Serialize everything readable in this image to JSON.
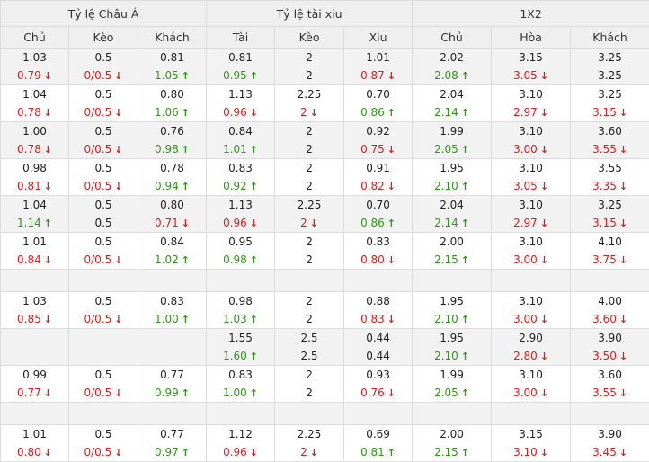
{
  "groups": [
    "Tỷ lệ Châu Á",
    "Tỷ lệ tài xiu",
    "1X2"
  ],
  "columns": [
    "Chủ",
    "Kèo",
    "Khách",
    "Tài",
    "Kèo",
    "Xiu",
    "Chủ",
    "Hòa",
    "Khách"
  ],
  "rows": [
    {
      "shade": true,
      "cells": [
        [
          [
            "1.03",
            ""
          ],
          [
            "0.79",
            "dn"
          ]
        ],
        [
          [
            "0.5",
            ""
          ],
          [
            "0/0.5",
            "dn"
          ]
        ],
        [
          [
            "0.81",
            ""
          ],
          [
            "1.05",
            "up"
          ]
        ],
        [
          [
            "0.81",
            ""
          ],
          [
            "0.95",
            "up"
          ]
        ],
        [
          [
            "2",
            ""
          ],
          [
            "2",
            ""
          ]
        ],
        [
          [
            "1.01",
            ""
          ],
          [
            "0.87",
            "dn"
          ]
        ],
        [
          [
            "2.02",
            ""
          ],
          [
            "2.08",
            "up"
          ]
        ],
        [
          [
            "3.15",
            ""
          ],
          [
            "3.05",
            "dn"
          ]
        ],
        [
          [
            "3.25",
            ""
          ],
          [
            "3.25",
            ""
          ]
        ]
      ]
    },
    {
      "shade": false,
      "cells": [
        [
          [
            "1.04",
            ""
          ],
          [
            "0.78",
            "dn"
          ]
        ],
        [
          [
            "0.5",
            ""
          ],
          [
            "0/0.5",
            "dn"
          ]
        ],
        [
          [
            "0.80",
            ""
          ],
          [
            "1.06",
            "up"
          ]
        ],
        [
          [
            "1.13",
            ""
          ],
          [
            "0.96",
            "dn"
          ]
        ],
        [
          [
            "2.25",
            ""
          ],
          [
            "2",
            "dn"
          ]
        ],
        [
          [
            "0.70",
            ""
          ],
          [
            "0.86",
            "up"
          ]
        ],
        [
          [
            "2.04",
            ""
          ],
          [
            "2.14",
            "up"
          ]
        ],
        [
          [
            "3.10",
            ""
          ],
          [
            "2.97",
            "dn"
          ]
        ],
        [
          [
            "3.25",
            ""
          ],
          [
            "3.15",
            "dn"
          ]
        ]
      ]
    },
    {
      "shade": true,
      "cells": [
        [
          [
            "1.00",
            ""
          ],
          [
            "0.78",
            "dn"
          ]
        ],
        [
          [
            "0.5",
            ""
          ],
          [
            "0/0.5",
            "dn"
          ]
        ],
        [
          [
            "0.76",
            ""
          ],
          [
            "0.98",
            "up"
          ]
        ],
        [
          [
            "0.84",
            ""
          ],
          [
            "1.01",
            "up"
          ]
        ],
        [
          [
            "2",
            ""
          ],
          [
            "2",
            ""
          ]
        ],
        [
          [
            "0.92",
            ""
          ],
          [
            "0.75",
            "dn"
          ]
        ],
        [
          [
            "1.99",
            ""
          ],
          [
            "2.05",
            "up"
          ]
        ],
        [
          [
            "3.10",
            ""
          ],
          [
            "3.00",
            "dn"
          ]
        ],
        [
          [
            "3.60",
            ""
          ],
          [
            "3.55",
            "dn"
          ]
        ]
      ]
    },
    {
      "shade": false,
      "cells": [
        [
          [
            "0.98",
            ""
          ],
          [
            "0.81",
            "dn"
          ]
        ],
        [
          [
            "0.5",
            ""
          ],
          [
            "0/0.5",
            "dn"
          ]
        ],
        [
          [
            "0.78",
            ""
          ],
          [
            "0.94",
            "up"
          ]
        ],
        [
          [
            "0.83",
            ""
          ],
          [
            "0.92",
            "up"
          ]
        ],
        [
          [
            "2",
            ""
          ],
          [
            "2",
            ""
          ]
        ],
        [
          [
            "0.91",
            ""
          ],
          [
            "0.82",
            "dn"
          ]
        ],
        [
          [
            "1.95",
            ""
          ],
          [
            "2.10",
            "up"
          ]
        ],
        [
          [
            "3.10",
            ""
          ],
          [
            "3.05",
            "dn"
          ]
        ],
        [
          [
            "3.55",
            ""
          ],
          [
            "3.35",
            "dn"
          ]
        ]
      ]
    },
    {
      "shade": true,
      "cells": [
        [
          [
            "1.04",
            ""
          ],
          [
            "1.14",
            "up"
          ]
        ],
        [
          [
            "0.5",
            ""
          ],
          [
            "0.5",
            ""
          ]
        ],
        [
          [
            "0.80",
            ""
          ],
          [
            "0.71",
            "dn"
          ]
        ],
        [
          [
            "1.13",
            ""
          ],
          [
            "0.96",
            "dn"
          ]
        ],
        [
          [
            "2.25",
            ""
          ],
          [
            "2",
            "dn"
          ]
        ],
        [
          [
            "0.70",
            ""
          ],
          [
            "0.86",
            "up"
          ]
        ],
        [
          [
            "2.04",
            ""
          ],
          [
            "2.14",
            "up"
          ]
        ],
        [
          [
            "3.10",
            ""
          ],
          [
            "2.97",
            "dn"
          ]
        ],
        [
          [
            "3.25",
            ""
          ],
          [
            "3.15",
            "dn"
          ]
        ]
      ]
    },
    {
      "shade": false,
      "cells": [
        [
          [
            "1.01",
            ""
          ],
          [
            "0.84",
            "dn"
          ]
        ],
        [
          [
            "0.5",
            ""
          ],
          [
            "0/0.5",
            "dn"
          ]
        ],
        [
          [
            "0.84",
            ""
          ],
          [
            "1.02",
            "up"
          ]
        ],
        [
          [
            "0.95",
            ""
          ],
          [
            "0.98",
            "up"
          ]
        ],
        [
          [
            "2",
            ""
          ],
          [
            "2",
            ""
          ]
        ],
        [
          [
            "0.83",
            ""
          ],
          [
            "0.80",
            "dn"
          ]
        ],
        [
          [
            "2.00",
            ""
          ],
          [
            "2.15",
            "up"
          ]
        ],
        [
          [
            "3.10",
            ""
          ],
          [
            "3.00",
            "dn"
          ]
        ],
        [
          [
            "4.10",
            ""
          ],
          [
            "3.75",
            "dn"
          ]
        ]
      ]
    },
    {
      "gap": true
    },
    {
      "shade": false,
      "cells": [
        [
          [
            "1.03",
            ""
          ],
          [
            "0.85",
            "dn"
          ]
        ],
        [
          [
            "0.5",
            ""
          ],
          [
            "0/0.5",
            "dn"
          ]
        ],
        [
          [
            "0.83",
            ""
          ],
          [
            "1.00",
            "up"
          ]
        ],
        [
          [
            "0.98",
            ""
          ],
          [
            "1.03",
            "up"
          ]
        ],
        [
          [
            "2",
            ""
          ],
          [
            "2",
            ""
          ]
        ],
        [
          [
            "0.88",
            ""
          ],
          [
            "0.83",
            "dn"
          ]
        ],
        [
          [
            "1.95",
            ""
          ],
          [
            "2.10",
            "up"
          ]
        ],
        [
          [
            "3.10",
            ""
          ],
          [
            "3.00",
            "dn"
          ]
        ],
        [
          [
            "4.00",
            ""
          ],
          [
            "3.60",
            "dn"
          ]
        ]
      ]
    },
    {
      "shade": true,
      "cells": [
        [],
        [],
        [],
        [
          [
            "1.55",
            ""
          ],
          [
            "1.60",
            "up"
          ]
        ],
        [
          [
            "2.5",
            ""
          ],
          [
            "2.5",
            ""
          ]
        ],
        [
          [
            "0.44",
            ""
          ],
          [
            "0.44",
            ""
          ]
        ],
        [
          [
            "1.95",
            ""
          ],
          [
            "2.10",
            "up"
          ]
        ],
        [
          [
            "2.90",
            ""
          ],
          [
            "2.80",
            "dn"
          ]
        ],
        [
          [
            "3.90",
            ""
          ],
          [
            "3.50",
            "dn"
          ]
        ]
      ]
    },
    {
      "shade": false,
      "cells": [
        [
          [
            "0.99",
            ""
          ],
          [
            "0.77",
            "dn"
          ]
        ],
        [
          [
            "0.5",
            ""
          ],
          [
            "0/0.5",
            "dn"
          ]
        ],
        [
          [
            "0.77",
            ""
          ],
          [
            "0.99",
            "up"
          ]
        ],
        [
          [
            "0.83",
            ""
          ],
          [
            "1.00",
            "up"
          ]
        ],
        [
          [
            "2",
            ""
          ],
          [
            "2",
            ""
          ]
        ],
        [
          [
            "0.93",
            ""
          ],
          [
            "0.76",
            "dn"
          ]
        ],
        [
          [
            "1.99",
            ""
          ],
          [
            "2.05",
            "up"
          ]
        ],
        [
          [
            "3.10",
            ""
          ],
          [
            "3.00",
            "dn"
          ]
        ],
        [
          [
            "3.60",
            ""
          ],
          [
            "3.55",
            "dn"
          ]
        ]
      ]
    },
    {
      "gap": true
    },
    {
      "shade": false,
      "cells": [
        [
          [
            "1.01",
            ""
          ],
          [
            "0.80",
            "dn"
          ]
        ],
        [
          [
            "0.5",
            ""
          ],
          [
            "0/0.5",
            "dn"
          ]
        ],
        [
          [
            "0.77",
            ""
          ],
          [
            "0.97",
            "up"
          ]
        ],
        [
          [
            "1.12",
            ""
          ],
          [
            "0.96",
            "dn"
          ]
        ],
        [
          [
            "2.25",
            ""
          ],
          [
            "2",
            "dn"
          ]
        ],
        [
          [
            "0.69",
            ""
          ],
          [
            "0.81",
            "up"
          ]
        ],
        [
          [
            "2.00",
            ""
          ],
          [
            "2.15",
            "up"
          ]
        ],
        [
          [
            "3.15",
            ""
          ],
          [
            "3.10",
            "dn"
          ]
        ],
        [
          [
            "3.90",
            ""
          ],
          [
            "3.45",
            "dn"
          ]
        ]
      ]
    }
  ],
  "colors": {
    "up": "#2c9a13",
    "down": "#e21b1b",
    "header_bg": "#efefef",
    "shade_bg": "#f2f2f2",
    "border": "#dcdcdc"
  },
  "icons": {
    "up": "arrow-up-icon",
    "down": "arrow-down-icon"
  }
}
